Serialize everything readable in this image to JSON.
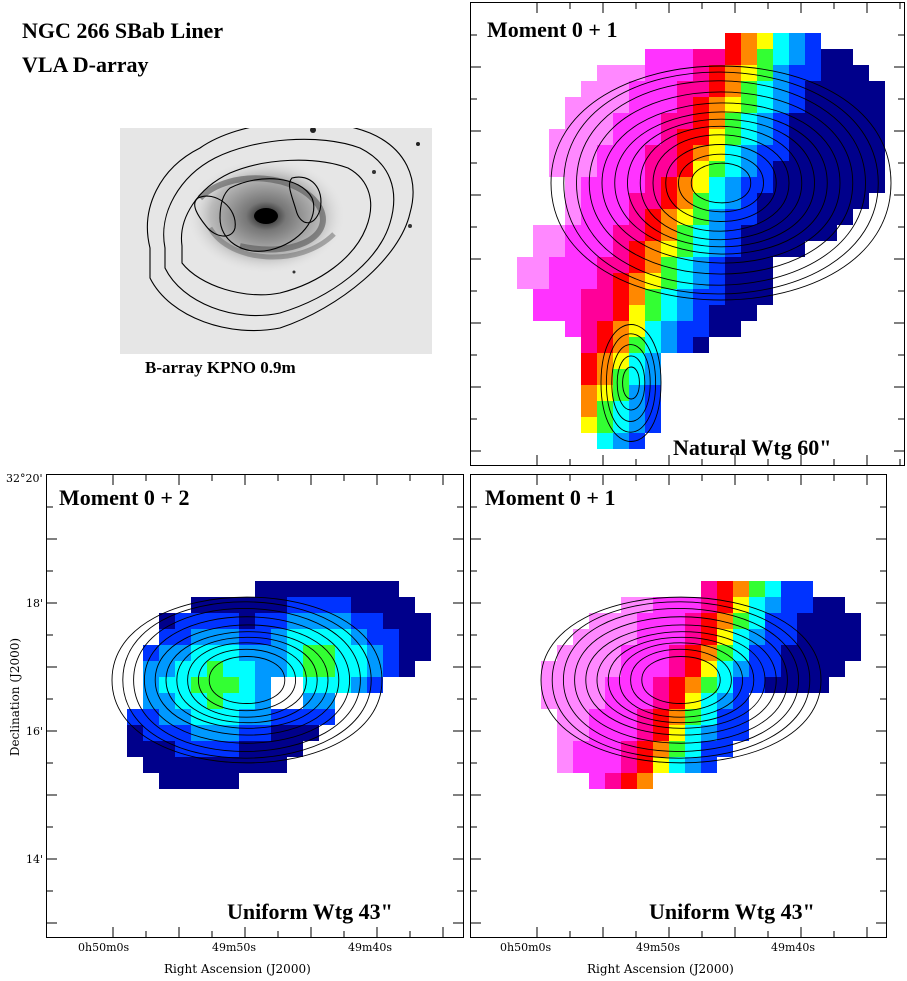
{
  "header": {
    "title_line1": "NGC 266   SBab   Liner",
    "title_line2": "VLA D-array"
  },
  "inset": {
    "caption": "B-array   KPNO 0.9m"
  },
  "chart_data": [
    {
      "type": "heatmap",
      "panel": "top-right",
      "title": "Moment 0 + 1",
      "annotation": "Natural Wtg   60\"",
      "grid": false
    },
    {
      "type": "heatmap",
      "panel": "bottom-left",
      "title": "Moment 0 + 2",
      "annotation": "Uniform Wtg   43\"",
      "xlabel": "Right Ascension (J2000)",
      "ylabel": "Declination (J2000)",
      "x_ticks": [
        "0h50m0s",
        "49m50s",
        "49m40s"
      ],
      "y_ticks": [
        "32°20'",
        "18'",
        "16'",
        "14'"
      ],
      "grid": false
    },
    {
      "type": "heatmap",
      "panel": "bottom-right",
      "title": "Moment 0 + 1",
      "annotation": "Uniform Wtg   43\"",
      "xlabel": "Right Ascension (J2000)",
      "x_ticks": [
        "0h50m0s",
        "49m50s",
        "49m40s"
      ],
      "grid": false
    }
  ],
  "colors": {
    "magenta": "#ff33ff",
    "light_magenta": "#ff88ff",
    "pink_red": "#ff0099",
    "red": "#ff0000",
    "orange": "#ff8800",
    "yellow": "#ffff00",
    "green": "#33ff33",
    "cyan": "#00ffff",
    "light_blue": "#0099ff",
    "blue": "#0033ff",
    "navy": "#00008b",
    "contour": "#000000"
  }
}
